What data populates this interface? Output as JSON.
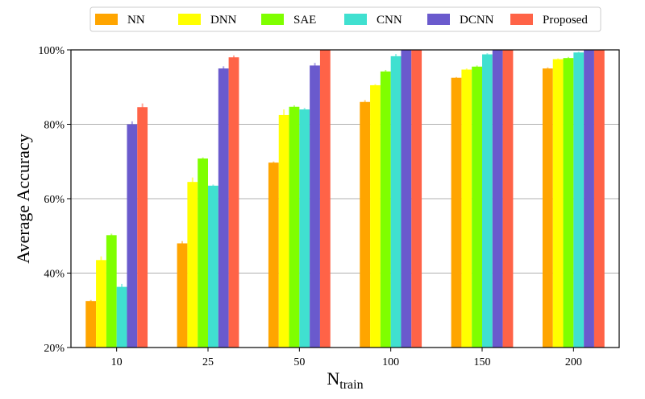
{
  "chart_data": {
    "type": "bar",
    "title": "",
    "xlabel": "N",
    "xlabel_subscript": "train",
    "ylabel": "Average Accuracy",
    "categories": [
      "10",
      "25",
      "50",
      "100",
      "150",
      "200"
    ],
    "ylim": [
      20,
      100
    ],
    "yticks": [
      20,
      40,
      60,
      80,
      100
    ],
    "ytick_labels": [
      "20%",
      "40%",
      "60%",
      "80%",
      "100%"
    ],
    "grid": "y",
    "legend_position": "top",
    "series": [
      {
        "name": "NN",
        "color": "#FFA500",
        "values": [
          32.5,
          48.0,
          69.7,
          86.0,
          92.5,
          95.0
        ],
        "errors": [
          0.3,
          0.6,
          0.3,
          0.5,
          0.2,
          0.3
        ]
      },
      {
        "name": "DNN",
        "color": "#FFFF00",
        "values": [
          43.5,
          64.5,
          82.5,
          90.5,
          94.7,
          97.5
        ],
        "errors": [
          1.0,
          1.2,
          1.5,
          0.3,
          0.3,
          0.2
        ]
      },
      {
        "name": "SAE",
        "color": "#7FFF00",
        "values": [
          50.2,
          70.8,
          84.7,
          94.2,
          95.5,
          97.8
        ],
        "errors": [
          0.4,
          0.3,
          0.4,
          0.4,
          0.3,
          0.3
        ]
      },
      {
        "name": "CNN",
        "color": "#40E0D0",
        "values": [
          36.3,
          63.5,
          84.0,
          98.3,
          98.8,
          99.3
        ],
        "errors": [
          0.8,
          0.3,
          0.4,
          0.6,
          0.3,
          0.2
        ]
      },
      {
        "name": "DCNN",
        "color": "#6A5ACD",
        "values": [
          80.0,
          95.0,
          95.8,
          100,
          100,
          100
        ],
        "errors": [
          0.8,
          0.6,
          0.7,
          0,
          0,
          0
        ]
      },
      {
        "name": "Proposed",
        "color": "#FF6347",
        "values": [
          84.6,
          98.0,
          100,
          100,
          100,
          100
        ],
        "errors": [
          1.0,
          0.5,
          0,
          0,
          0,
          0
        ]
      }
    ]
  }
}
